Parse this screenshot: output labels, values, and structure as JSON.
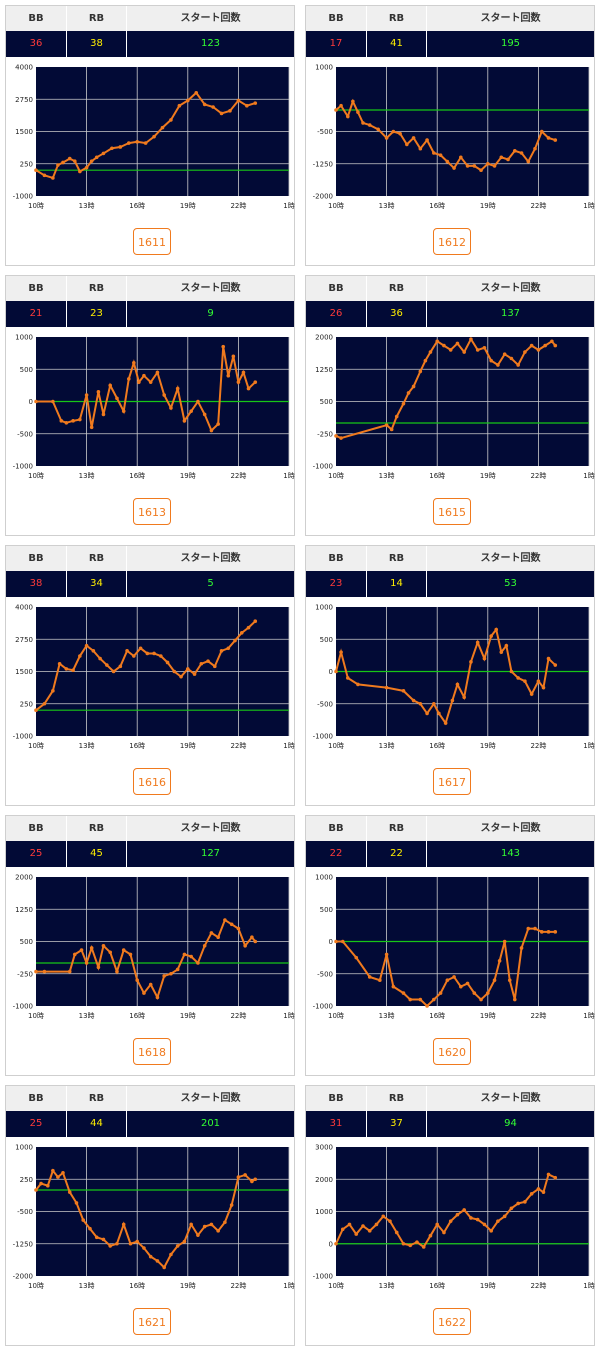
{
  "headers": {
    "bb": "BB",
    "rb": "RB",
    "start": "スタート回数"
  },
  "colors": {
    "bb": "#ff3a3a",
    "rb": "#ffee00",
    "start": "#33ff33",
    "plot_bg": "#020a36",
    "line": "#f07a1e",
    "zero": "#17c617",
    "button": "#f07a1e"
  },
  "machines": [
    {
      "id": "1611",
      "bb": "36",
      "rb": "38",
      "start": "123"
    },
    {
      "id": "1612",
      "bb": "17",
      "rb": "41",
      "start": "195"
    },
    {
      "id": "1613",
      "bb": "21",
      "rb": "23",
      "start": "9"
    },
    {
      "id": "1615",
      "bb": "26",
      "rb": "36",
      "start": "137"
    },
    {
      "id": "1616",
      "bb": "38",
      "rb": "34",
      "start": "5"
    },
    {
      "id": "1617",
      "bb": "23",
      "rb": "14",
      "start": "53"
    },
    {
      "id": "1618",
      "bb": "25",
      "rb": "45",
      "start": "127"
    },
    {
      "id": "1620",
      "bb": "22",
      "rb": "22",
      "start": "143"
    },
    {
      "id": "1621",
      "bb": "25",
      "rb": "44",
      "start": "201"
    },
    {
      "id": "1622",
      "bb": "31",
      "rb": "37",
      "start": "94"
    }
  ],
  "chart_data": [
    {
      "type": "line",
      "machine": "1611",
      "x_ticks": [
        "10時",
        "13時",
        "16時",
        "19時",
        "22時",
        "1時"
      ],
      "y_ticks": [
        "4000",
        "2750",
        "1500",
        "250",
        "-1000"
      ],
      "ylim": [
        -1000,
        4000
      ],
      "x": [
        10,
        10.5,
        11,
        11.3,
        11.6,
        12,
        12.3,
        12.6,
        13,
        13.3,
        13.6,
        14,
        14.5,
        15,
        15.5,
        16,
        16.5,
        17,
        17.5,
        18,
        18.5,
        19,
        19.5,
        20,
        20.5,
        21,
        21.5,
        22,
        22.5,
        23
      ],
      "y": [
        0,
        -200,
        -300,
        200,
        300,
        450,
        350,
        -50,
        100,
        350,
        500,
        650,
        850,
        900,
        1050,
        1100,
        1050,
        1300,
        1650,
        1950,
        2500,
        2700,
        3000,
        2550,
        2450,
        2200,
        2300,
        2700,
        2500,
        2600
      ]
    },
    {
      "type": "line",
      "machine": "1612",
      "x_ticks": [
        "10時",
        "13時",
        "16時",
        "19時",
        "22時",
        "1時"
      ],
      "y_ticks": [
        "1000",
        "-500",
        "-1250",
        "-2000"
      ],
      "y_tick_values": [
        1000,
        -500,
        -1250,
        -2000
      ],
      "ylim": [
        -2000,
        1000
      ],
      "x": [
        10,
        10.3,
        10.7,
        11,
        11.3,
        11.6,
        12,
        12.5,
        13,
        13.4,
        13.8,
        14.2,
        14.6,
        15,
        15.4,
        15.8,
        16.2,
        16.6,
        17,
        17.4,
        17.8,
        18.2,
        18.6,
        19,
        19.4,
        19.8,
        20.2,
        20.6,
        21,
        21.4,
        21.8,
        22.2,
        22.6,
        23
      ],
      "y": [
        0,
        100,
        -150,
        200,
        -50,
        -300,
        -350,
        -450,
        -650,
        -500,
        -550,
        -800,
        -650,
        -900,
        -700,
        -1000,
        -1050,
        -1200,
        -1350,
        -1100,
        -1300,
        -1300,
        -1400,
        -1250,
        -1300,
        -1100,
        -1150,
        -950,
        -1000,
        -1200,
        -900,
        -500,
        -650,
        -700
      ]
    },
    {
      "type": "line",
      "machine": "1613",
      "x_ticks": [
        "10時",
        "13時",
        "16時",
        "19時",
        "22時",
        "1時"
      ],
      "y_ticks": [
        "1000",
        "500",
        "0",
        "-500",
        "-1000"
      ],
      "ylim": [
        -1000,
        1000
      ],
      "x": [
        10,
        11,
        11.5,
        11.8,
        12.2,
        12.6,
        13,
        13.3,
        13.7,
        14,
        14.4,
        14.8,
        15.2,
        15.5,
        15.8,
        16.1,
        16.4,
        16.8,
        17.2,
        17.6,
        18,
        18.4,
        18.8,
        19.2,
        19.6,
        20,
        20.4,
        20.8,
        21.1,
        21.4,
        21.7,
        22,
        22.3,
        22.6,
        23
      ],
      "y": [
        0,
        0,
        -300,
        -330,
        -300,
        -280,
        100,
        -400,
        150,
        -200,
        250,
        50,
        -150,
        350,
        600,
        300,
        400,
        300,
        450,
        100,
        -100,
        200,
        -300,
        -150,
        0,
        -200,
        -450,
        -350,
        850,
        400,
        700,
        300,
        450,
        200,
        300
      ]
    },
    {
      "type": "line",
      "machine": "1615",
      "x_ticks": [
        "10時",
        "13時",
        "16時",
        "19時",
        "22時",
        "1時"
      ],
      "y_ticks": [
        "2000",
        "1250",
        "500",
        "-250",
        "-1000"
      ],
      "ylim": [
        -1000,
        2000
      ],
      "x": [
        10,
        10.3,
        13,
        13.3,
        13.6,
        14,
        14.3,
        14.6,
        15,
        15.3,
        15.6,
        16,
        16.4,
        16.8,
        17.2,
        17.6,
        18,
        18.4,
        18.8,
        19.2,
        19.6,
        20,
        20.4,
        20.8,
        21.2,
        21.6,
        22,
        22.4,
        22.8,
        23
      ],
      "y": [
        -300,
        -350,
        -50,
        -150,
        150,
        450,
        700,
        850,
        1200,
        1450,
        1650,
        1900,
        1800,
        1700,
        1850,
        1650,
        1950,
        1700,
        1750,
        1450,
        1350,
        1600,
        1500,
        1350,
        1650,
        1800,
        1700,
        1800,
        1900,
        1800
      ]
    },
    {
      "type": "line",
      "machine": "1616",
      "x_ticks": [
        "10時",
        "13時",
        "16時",
        "19時",
        "22時",
        "1時"
      ],
      "y_ticks": [
        "4000",
        "2750",
        "1500",
        "250",
        "-1000"
      ],
      "ylim": [
        -1000,
        4000
      ],
      "x": [
        10,
        10.5,
        11,
        11.4,
        11.8,
        12.2,
        12.6,
        13,
        13.4,
        13.8,
        14.2,
        14.6,
        15,
        15.4,
        15.8,
        16.2,
        16.6,
        17,
        17.4,
        17.8,
        18.2,
        18.6,
        19,
        19.4,
        19.8,
        20.2,
        20.6,
        21,
        21.4,
        21.8,
        22.2,
        22.6,
        23
      ],
      "y": [
        0,
        250,
        750,
        1800,
        1600,
        1550,
        2100,
        2500,
        2300,
        2000,
        1750,
        1500,
        1700,
        2300,
        2100,
        2400,
        2200,
        2200,
        2100,
        1850,
        1500,
        1300,
        1600,
        1400,
        1800,
        1900,
        1700,
        2300,
        2400,
        2700,
        3000,
        3200,
        3450
      ]
    },
    {
      "type": "line",
      "machine": "1617",
      "x_ticks": [
        "10時",
        "13時",
        "16時",
        "19時",
        "22時",
        "1時"
      ],
      "y_ticks": [
        "1000",
        "500",
        "0",
        "-500",
        "-1000"
      ],
      "ylim": [
        -1000,
        1000
      ],
      "x": [
        10,
        10.3,
        10.7,
        11.3,
        13,
        14,
        14.6,
        15,
        15.4,
        15.8,
        16.1,
        16.5,
        16.9,
        17.2,
        17.6,
        18,
        18.4,
        18.8,
        19.2,
        19.5,
        19.8,
        20.1,
        20.4,
        20.8,
        21.2,
        21.6,
        22,
        22.3,
        22.6,
        23
      ],
      "y": [
        0,
        300,
        -100,
        -200,
        -250,
        -300,
        -450,
        -500,
        -650,
        -500,
        -650,
        -800,
        -450,
        -200,
        -400,
        150,
        450,
        200,
        550,
        650,
        300,
        400,
        0,
        -100,
        -150,
        -350,
        -150,
        -250,
        200,
        100
      ]
    },
    {
      "type": "line",
      "machine": "1618",
      "x_ticks": [
        "10時",
        "13時",
        "16時",
        "19時",
        "22時",
        "1時"
      ],
      "y_ticks": [
        "2000",
        "1250",
        "500",
        "-250",
        "-1000"
      ],
      "ylim": [
        -1000,
        2000
      ],
      "x": [
        10,
        10.5,
        12,
        12.3,
        12.7,
        13,
        13.3,
        13.7,
        14,
        14.4,
        14.8,
        15.2,
        15.6,
        16,
        16.4,
        16.8,
        17.2,
        17.6,
        18,
        18.4,
        18.8,
        19.2,
        19.6,
        20,
        20.4,
        20.8,
        21.2,
        21.6,
        22,
        22.4,
        22.8,
        23
      ],
      "y": [
        -200,
        -200,
        -200,
        200,
        300,
        0,
        350,
        -100,
        400,
        250,
        -200,
        300,
        200,
        -400,
        -700,
        -500,
        -800,
        -300,
        -250,
        -150,
        200,
        150,
        0,
        400,
        700,
        600,
        1000,
        900,
        800,
        400,
        600,
        500
      ]
    },
    {
      "type": "line",
      "machine": "1620",
      "x_ticks": [
        "10時",
        "13時",
        "16時",
        "19時",
        "22時",
        "1時"
      ],
      "y_ticks": [
        "1000",
        "500",
        "0",
        "-500",
        "-1000"
      ],
      "ylim": [
        -1000,
        1000
      ],
      "x": [
        10,
        10.4,
        11.2,
        12,
        12.6,
        13,
        13.4,
        14,
        14.4,
        15,
        15.4,
        15.8,
        16.2,
        16.6,
        17,
        17.4,
        17.8,
        18.2,
        18.6,
        19,
        19.4,
        19.7,
        20,
        20.3,
        20.6,
        21,
        21.4,
        21.8,
        22.2,
        22.6,
        23
      ],
      "y": [
        0,
        0,
        -250,
        -550,
        -600,
        -200,
        -700,
        -800,
        -900,
        -900,
        -1000,
        -900,
        -800,
        -600,
        -550,
        -700,
        -650,
        -800,
        -900,
        -800,
        -600,
        -300,
        0,
        -600,
        -900,
        -100,
        200,
        200,
        150,
        150,
        150
      ]
    },
    {
      "type": "line",
      "machine": "1621",
      "x_ticks": [
        "10時",
        "13時",
        "16時",
        "19時",
        "22時",
        "1時"
      ],
      "y_ticks": [
        "1000",
        "250",
        "-500",
        "-1250",
        "-2000"
      ],
      "ylim": [
        -2000,
        1000
      ],
      "x": [
        10,
        10.3,
        10.7,
        11,
        11.3,
        11.6,
        12,
        12.4,
        12.8,
        13.2,
        13.6,
        14,
        14.4,
        14.8,
        15.2,
        15.6,
        16,
        16.4,
        16.8,
        17.2,
        17.6,
        18,
        18.4,
        18.8,
        19.2,
        19.6,
        20,
        20.4,
        20.8,
        21.2,
        21.6,
        22,
        22.4,
        22.8,
        23
      ],
      "y": [
        0,
        150,
        100,
        450,
        300,
        400,
        -50,
        -300,
        -700,
        -900,
        -1100,
        -1150,
        -1300,
        -1250,
        -800,
        -1250,
        -1200,
        -1350,
        -1550,
        -1650,
        -1800,
        -1500,
        -1300,
        -1200,
        -800,
        -1050,
        -850,
        -800,
        -950,
        -750,
        -350,
        300,
        350,
        200,
        250
      ]
    },
    {
      "type": "line",
      "machine": "1622",
      "x_ticks": [
        "10時",
        "13時",
        "16時",
        "19時",
        "22時",
        "1時"
      ],
      "y_ticks": [
        "3000",
        "2000",
        "1000",
        "0",
        "-1000"
      ],
      "ylim": [
        -1000,
        3000
      ],
      "x": [
        10,
        10.4,
        10.8,
        11.2,
        11.6,
        12,
        12.4,
        12.8,
        13.2,
        13.6,
        14,
        14.4,
        14.8,
        15.2,
        15.6,
        16,
        16.4,
        16.8,
        17.2,
        17.6,
        18,
        18.4,
        18.8,
        19.2,
        19.6,
        20,
        20.4,
        20.8,
        21.2,
        21.6,
        22,
        22.3,
        22.6,
        23
      ],
      "y": [
        0,
        450,
        600,
        300,
        550,
        400,
        600,
        850,
        700,
        350,
        0,
        -50,
        50,
        -100,
        250,
        600,
        350,
        700,
        900,
        1050,
        800,
        750,
        600,
        400,
        700,
        850,
        1100,
        1250,
        1300,
        1550,
        1700,
        1600,
        2150,
        2050
      ]
    }
  ]
}
